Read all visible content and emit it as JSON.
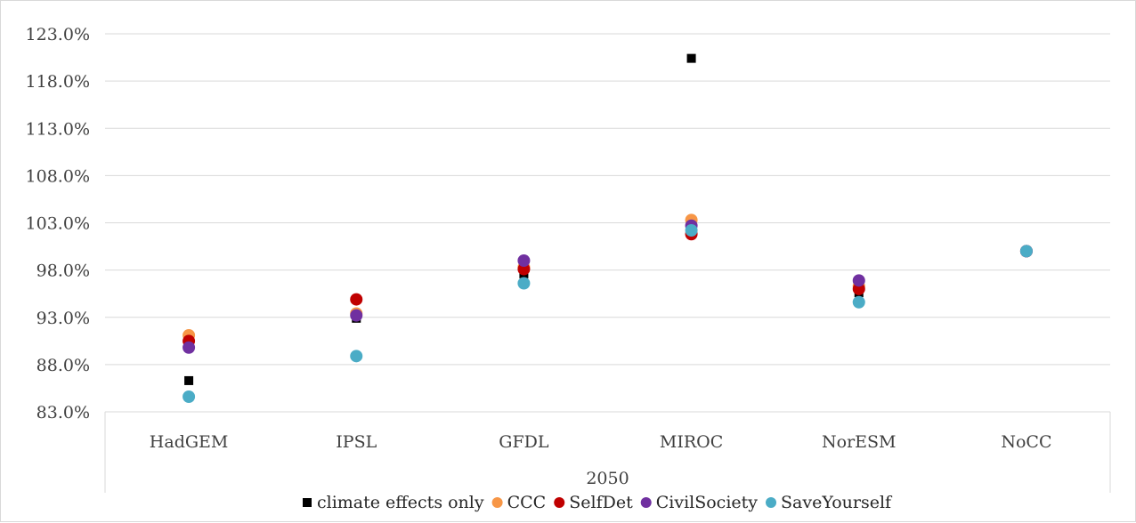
{
  "chart_data": {
    "type": "scatter",
    "categories": [
      "HadGEM",
      "IPSL",
      "GFDL",
      "MIROC",
      "NorESM",
      "NoCC"
    ],
    "group_label": "2050",
    "y_tick_labels": [
      "83.0%",
      "88.0%",
      "93.0%",
      "98.0%",
      "103.0%",
      "108.0%",
      "113.0%",
      "118.0%",
      "123.0%"
    ],
    "ylim": [
      83,
      123
    ],
    "grid": true,
    "legend_position": "bottom",
    "series": [
      {
        "name": "climate effects only",
        "marker": "square",
        "color": "#000000",
        "values": [
          86.3,
          92.9,
          97.6,
          120.4,
          95.6,
          100.0
        ]
      },
      {
        "name": "CCC",
        "marker": "circle",
        "color": "#F79646",
        "values": [
          91.1,
          93.4,
          98.3,
          103.3,
          96.3,
          100.0
        ]
      },
      {
        "name": "SelfDet",
        "marker": "circle",
        "color": "#C00000",
        "values": [
          90.5,
          94.9,
          98.1,
          101.8,
          96.0,
          100.0
        ]
      },
      {
        "name": "CivilSociety",
        "marker": "circle",
        "color": "#7030A0",
        "values": [
          89.8,
          93.2,
          99.0,
          102.7,
          96.9,
          100.0
        ]
      },
      {
        "name": "SaveYourself",
        "marker": "circle",
        "color": "#4BACC6",
        "values": [
          84.6,
          88.9,
          96.6,
          102.2,
          94.6,
          100.0
        ]
      }
    ]
  }
}
